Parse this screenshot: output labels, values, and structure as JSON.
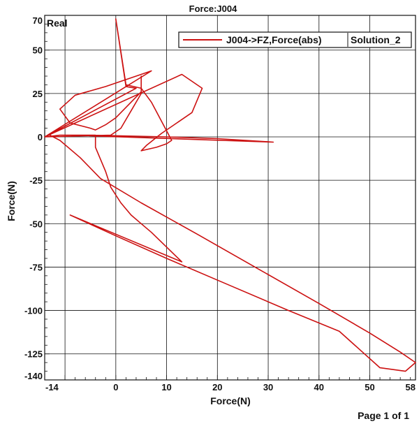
{
  "chart_data": {
    "type": "line",
    "title": "Force:J004",
    "corner_label": "Real",
    "xlabel": "Force(N)",
    "ylabel": "Force(N)",
    "xlim": [
      -14,
      59
    ],
    "ylim": [
      -140,
      70
    ],
    "x_ticks": [
      -14,
      0,
      10,
      20,
      30,
      40,
      50,
      58
    ],
    "y_ticks": [
      70,
      50,
      25,
      0,
      -25,
      -50,
      -75,
      -100,
      -125,
      -140
    ],
    "x_grid": [
      -10,
      0,
      10,
      20,
      30,
      40,
      50
    ],
    "y_grid": [
      50,
      25,
      0,
      -25,
      -50,
      -75,
      -100,
      -125
    ],
    "grid": true,
    "legend_position": "top-right",
    "series": [
      {
        "name": "J004->FZ,Force(abs)",
        "solution": "Solution_2",
        "color": "#cc1111",
        "points": [
          [
            -14,
            0
          ],
          [
            7,
            38
          ],
          [
            -2,
            29
          ],
          [
            -8,
            24
          ],
          [
            -11,
            16
          ],
          [
            -9,
            8
          ],
          [
            -5,
            5
          ],
          [
            -4,
            4
          ],
          [
            -2,
            7
          ],
          [
            0,
            11
          ],
          [
            3,
            20
          ],
          [
            5,
            26
          ],
          [
            5,
            35
          ],
          [
            5,
            25
          ],
          [
            3,
            15
          ],
          [
            2,
            10
          ],
          [
            1,
            5
          ],
          [
            -1,
            1
          ],
          [
            -14,
            0
          ],
          [
            13,
            36
          ],
          [
            17,
            28
          ],
          [
            15,
            14
          ],
          [
            11,
            6
          ],
          [
            9,
            2
          ],
          [
            6,
            -5
          ],
          [
            5,
            -8
          ],
          [
            8,
            -6
          ],
          [
            10,
            -4
          ],
          [
            11,
            -2
          ],
          [
            7,
            20
          ],
          [
            5,
            28
          ],
          [
            2,
            30
          ],
          [
            0,
            68
          ],
          [
            2,
            29
          ],
          [
            4,
            28
          ],
          [
            -14,
            0
          ],
          [
            -11,
            1
          ],
          [
            -5,
            1
          ],
          [
            10,
            0
          ],
          [
            20,
            -1
          ],
          [
            31,
            -3
          ],
          [
            -9,
            1
          ],
          [
            -4,
            1
          ],
          [
            -4,
            -6
          ],
          [
            -2,
            -20
          ],
          [
            -1,
            -29
          ],
          [
            1,
            -38
          ],
          [
            3,
            -45
          ],
          [
            5,
            -50
          ],
          [
            7,
            -55
          ],
          [
            13,
            -72
          ],
          [
            -9,
            -45
          ],
          [
            -9,
            -45
          ],
          [
            0,
            -57
          ],
          [
            10,
            -70
          ],
          [
            22,
            -85
          ],
          [
            34,
            -100
          ],
          [
            44,
            -112
          ],
          [
            52,
            -133
          ],
          [
            57,
            -135
          ],
          [
            59,
            -130
          ],
          [
            56,
            -124
          ],
          [
            50,
            -113
          ],
          [
            40,
            -96
          ],
          [
            28,
            -76
          ],
          [
            16,
            -56
          ],
          [
            5,
            -38
          ],
          [
            -3,
            -24
          ],
          [
            -7,
            -12
          ],
          [
            -11,
            -2
          ],
          [
            -13,
            1
          ]
        ]
      }
    ]
  },
  "footer": {
    "page_label": "Page 1 of 1"
  }
}
